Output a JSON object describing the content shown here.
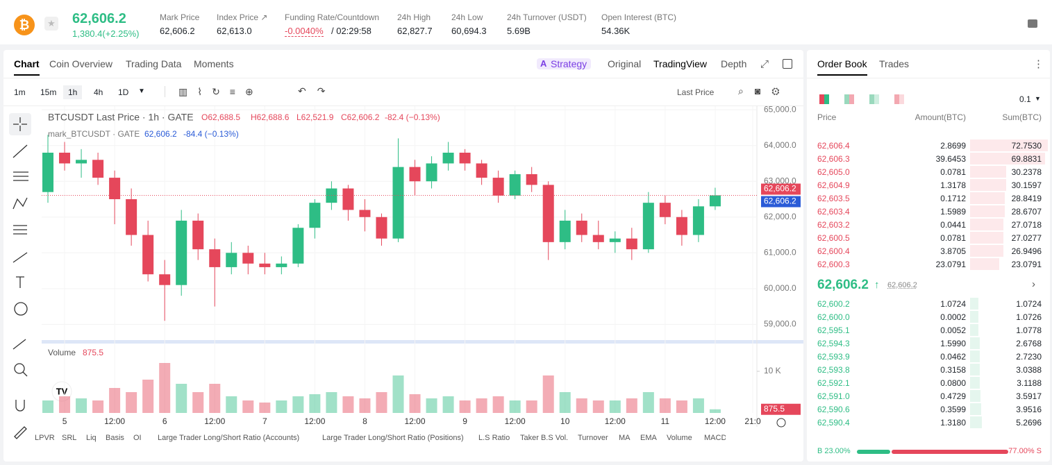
{
  "header": {
    "price": "62,606.2",
    "change": "1,380.4(+2.25%)",
    "stats": [
      {
        "label": "Mark Price",
        "value": "62,606.2"
      },
      {
        "label": "Index Price ↗",
        "value": "62,613.0"
      },
      {
        "label": "Funding Rate/Countdown",
        "value": "-0.0040%",
        "countdown": "/ 02:29:58"
      },
      {
        "label": "24h High",
        "value": "62,827.7"
      },
      {
        "label": "24h Low",
        "value": "60,694.3"
      },
      {
        "label": "24h Turnover (USDT)",
        "value": "5.69B"
      },
      {
        "label": "Open Interest (BTC)",
        "value": "54.36K"
      }
    ]
  },
  "tabs": [
    "Chart",
    "Coin Overview",
    "Trading Data",
    "Moments"
  ],
  "view_tabs": [
    "Strategy",
    "Original",
    "TradingView",
    "Depth"
  ],
  "intervals": [
    "1m",
    "15m",
    "1h",
    "4h",
    "1D"
  ],
  "price_source": "Last Price",
  "indicators": [
    "LPVR",
    "SRL",
    "Liq",
    "Basis",
    "OI",
    "Large Trader Long/Short Ratio (Accounts)",
    "Large Trader Long/Short Ratio (Positions)",
    "L.S Ratio",
    "Taker B.S Vol.",
    "Turnover",
    "MA",
    "EMA",
    "Volume",
    "MACD"
  ],
  "chart_data": {
    "type": "candlestick",
    "legend": {
      "title": "BTCUSDT Last Price · 1h · GATE",
      "open": "O62,688.5",
      "high": "H62,688.6",
      "low": "L62,521.9",
      "close": "C62,606.2",
      "change": "-82.4 (−0.13%)",
      "mark_title": "mark_BTCUSDT · GATE",
      "mark_price": "62,606.2",
      "mark_change": "-84.4 (−0.13%)"
    },
    "up_color": "#2ebd85",
    "down_color": "#e5475b",
    "x": [
      1,
      5,
      9,
      13,
      17,
      21,
      25,
      29,
      33,
      37,
      41,
      45,
      49,
      53,
      57,
      61,
      65,
      69,
      73,
      77,
      81,
      85,
      89,
      93,
      97,
      101,
      105,
      109,
      113,
      117,
      121,
      125,
      129,
      133,
      137,
      141,
      145,
      149,
      153,
      157,
      161
    ],
    "open": [
      62700,
      63800,
      63500,
      63600,
      63100,
      62500,
      61500,
      60400,
      60100,
      61900,
      61100,
      60600,
      61000,
      60700,
      60600,
      60700,
      61700,
      62400,
      62800,
      62200,
      62000,
      61400,
      63400,
      63000,
      63500,
      63800,
      63500,
      63100,
      62600,
      63200,
      62900,
      61300,
      61900,
      61500,
      61300,
      61400,
      61100,
      62400,
      62000,
      61500,
      62300
    ],
    "high": [
      64300,
      64100,
      63900,
      63800,
      63300,
      62800,
      61900,
      60800,
      62200,
      62100,
      61400,
      61300,
      61200,
      61000,
      60900,
      61800,
      62500,
      63000,
      62900,
      62500,
      62100,
      64200,
      63600,
      63700,
      64100,
      63900,
      63600,
      63300,
      63300,
      63400,
      63000,
      62200,
      62100,
      61900,
      61600,
      61700,
      62700,
      62600,
      62200,
      62500,
      62820
    ],
    "low": [
      62400,
      63300,
      63100,
      62900,
      61800,
      61200,
      60200,
      59100,
      59800,
      60800,
      59500,
      60400,
      60400,
      60400,
      60400,
      60600,
      61400,
      62200,
      61900,
      61600,
      61200,
      61300,
      62600,
      62800,
      63300,
      63300,
      62900,
      62400,
      62500,
      62700,
      60800,
      61100,
      61300,
      61100,
      61000,
      60800,
      61000,
      61800,
      61200,
      61300,
      62200
    ],
    "close": [
      63800,
      63500,
      63600,
      63100,
      62500,
      61500,
      60400,
      60100,
      61900,
      61100,
      60600,
      61000,
      60700,
      60600,
      60700,
      61700,
      62400,
      62800,
      62200,
      62000,
      61400,
      63400,
      63000,
      63500,
      63800,
      63500,
      63100,
      62600,
      63200,
      62900,
      61300,
      61900,
      61500,
      61300,
      61400,
      61100,
      62400,
      62000,
      61500,
      62300,
      62606.2
    ],
    "xlim": [
      -0.5,
      171
    ],
    "xticks": [
      5,
      {
        "value": 17,
        "label": "12:00"
      },
      {
        "value": 29,
        "label": "6"
      },
      {
        "value": 41,
        "label": "12:00"
      },
      {
        "value": 53,
        "label": "7"
      },
      {
        "value": 65,
        "label": "12:00"
      },
      {
        "value": 77,
        "label": "8"
      },
      {
        "value": 89,
        "label": "12:00"
      },
      {
        "value": 101,
        "label": "9"
      },
      {
        "value": 113,
        "label": "12:00"
      },
      {
        "value": 125,
        "label": "10"
      },
      {
        "value": 137,
        "label": "12:00"
      },
      {
        "value": 149,
        "label": "11"
      },
      {
        "value": 161,
        "label": "12:00"
      },
      {
        "value": 170,
        "label": "21:0"
      }
    ],
    "ylim": [
      58600,
      65100
    ],
    "yticks": [
      {
        "value": 59000,
        "label": "59,000.0"
      },
      {
        "value": 60000,
        "label": "60,000.0"
      },
      {
        "value": 61000,
        "label": "61,000.0"
      },
      {
        "value": 62000,
        "label": "62,000.0"
      },
      {
        "value": 63000,
        "label": "63,000.0"
      },
      {
        "value": 64000,
        "label": "64,000.0"
      },
      {
        "value": 65000,
        "label": "65,000.0"
      }
    ],
    "price_tags": [
      {
        "label": "62,606.2",
        "color": "#e5475b"
      },
      {
        "label": "62,606.2",
        "color": "#2a5bd7"
      }
    ],
    "volume": {
      "title": "Volume",
      "last": "875.5",
      "values": [
        3000,
        4000,
        3500,
        3000,
        6000,
        5000,
        8000,
        12000,
        7000,
        5000,
        7000,
        4000,
        3000,
        2500,
        3000,
        4000,
        4500,
        5000,
        4000,
        3500,
        5000,
        9000,
        4500,
        3500,
        4000,
        3000,
        3500,
        4000,
        3000,
        3000,
        9000,
        5000,
        3500,
        3000,
        3000,
        3500,
        5000,
        3500,
        3000,
        3500,
        875.5
      ],
      "ylim": [
        0,
        16000
      ],
      "yticks": [
        {
          "value": 10000,
          "label": "10 K"
        }
      ]
    }
  },
  "order_book": {
    "tabs": [
      "Order Book",
      "Trades"
    ],
    "precision": "0.1",
    "headers": [
      "Price",
      "Amount(BTC)",
      "Sum(BTC)"
    ],
    "asks": [
      [
        "62,606.4",
        "2.8699",
        "72.7530"
      ],
      [
        "62,606.3",
        "39.6453",
        "69.8831"
      ],
      [
        "62,605.0",
        "0.0781",
        "30.2378"
      ],
      [
        "62,604.9",
        "1.3178",
        "30.1597"
      ],
      [
        "62,603.5",
        "0.1712",
        "28.8419"
      ],
      [
        "62,603.4",
        "1.5989",
        "28.6707"
      ],
      [
        "62,603.2",
        "0.0441",
        "27.0718"
      ],
      [
        "62,600.5",
        "0.0781",
        "27.0277"
      ],
      [
        "62,600.4",
        "3.8705",
        "26.9496"
      ],
      [
        "62,600.3",
        "23.0791",
        "23.0791"
      ]
    ],
    "mid_price": "62,606.2",
    "mid_mark": "62,606.2",
    "bids": [
      [
        "62,600.2",
        "1.0724",
        "1.0724"
      ],
      [
        "62,600.0",
        "0.0002",
        "1.0726"
      ],
      [
        "62,595.1",
        "0.0052",
        "1.0778"
      ],
      [
        "62,594.3",
        "1.5990",
        "2.6768"
      ],
      [
        "62,593.9",
        "0.0462",
        "2.7230"
      ],
      [
        "62,593.8",
        "0.3158",
        "3.0388"
      ],
      [
        "62,592.1",
        "0.0800",
        "3.1188"
      ],
      [
        "62,591.0",
        "0.4729",
        "3.5917"
      ],
      [
        "62,590.6",
        "0.3599",
        "3.9516"
      ],
      [
        "62,590.4",
        "1.3180",
        "5.2696"
      ]
    ],
    "buy_label": "B 23.00%",
    "sell_label": "77.00% S",
    "buy_ratio": 23,
    "sell_ratio": 77
  }
}
